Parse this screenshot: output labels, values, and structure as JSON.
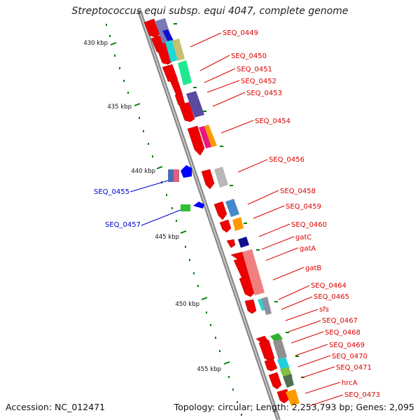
{
  "title": "Streptococcus equi subsp. equi 4047, complete genome",
  "footer": {
    "accession": "Accession: NC_012471",
    "summary": "Topology: circular; Length: 2,253,793 bp; Genes: 2,095"
  },
  "ticks": [
    "430 kbp",
    "435 kbp",
    "440 kbp",
    "445 kbp",
    "450 kbp",
    "455 kbp"
  ],
  "colors": {
    "forward_cds": "#ff0000",
    "reverse_cds_label": "#0000cc",
    "tick": "#008000",
    "backbone": "#808080"
  },
  "forward_labels": [
    "SEQ_0449",
    "SEQ_0450",
    "SEQ_0451",
    "SEQ_0452",
    "SEQ_0453",
    "SEQ_0454",
    "SEQ_0456",
    "SEQ_0458",
    "SEQ_0459",
    "SEQ_0460",
    "gatC",
    "gatA",
    "gatB",
    "SEQ_0464",
    "SEQ_0465",
    "sfs",
    "SEQ_0467",
    "SEQ_0468",
    "SEQ_0469",
    "SEQ_0470",
    "SEQ_0471",
    "hrcA",
    "SEQ_0473"
  ],
  "reverse_labels": [
    "SEQ_0455",
    "SEQ_0457"
  ]
}
